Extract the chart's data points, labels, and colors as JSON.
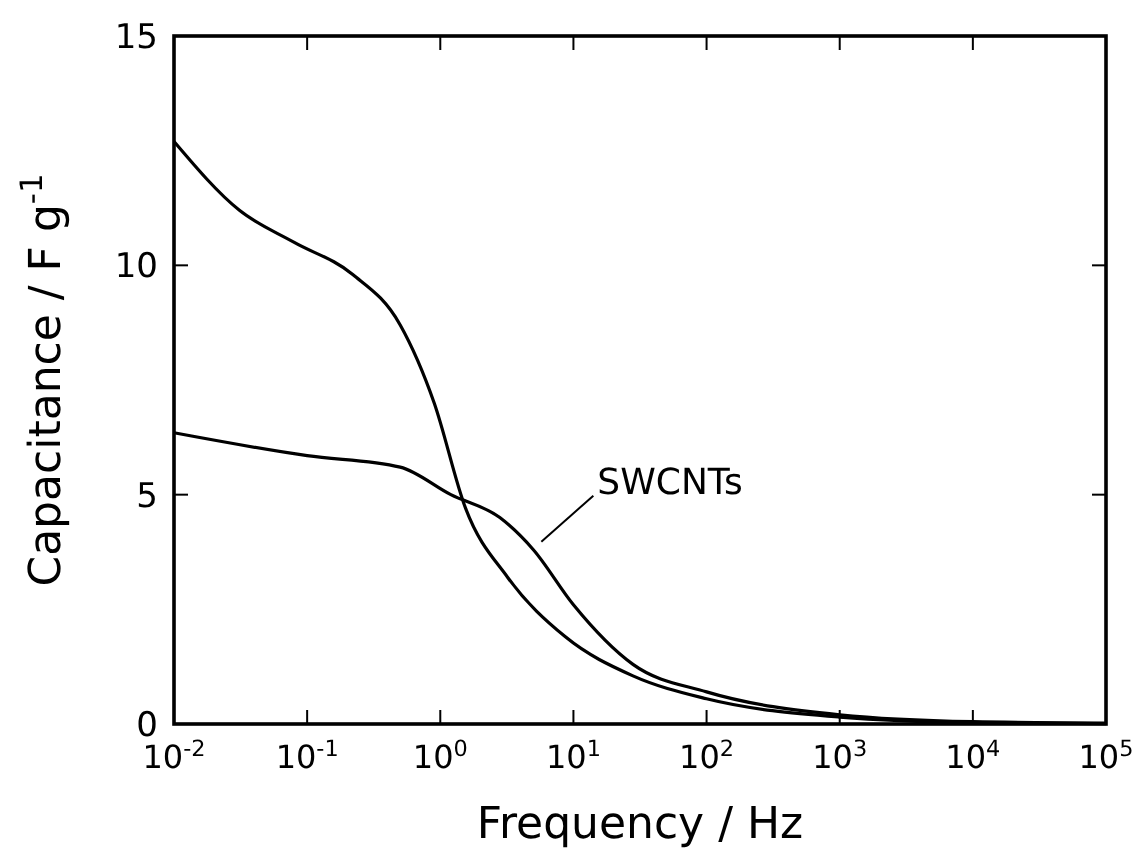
{
  "chart_data": {
    "type": "line",
    "xlabel": "Frequency / Hz",
    "ylabel": "Capacitance / F g$^{-1}$",
    "log": "x",
    "xlim": [
      0.01,
      100000
    ],
    "ylim": [
      0,
      15
    ],
    "xticks": [
      {
        "value": 0.01,
        "label": "10$^{-2}$"
      },
      {
        "value": 0.1,
        "label": "10$^{-1}$"
      },
      {
        "value": 1,
        "label": "10$^{0}$"
      },
      {
        "value": 10,
        "label": "10$^{1}$"
      },
      {
        "value": 100,
        "label": "10$^{2}$"
      },
      {
        "value": 1000,
        "label": "10$^{3}$"
      },
      {
        "value": 10000,
        "label": "10$^{4}$"
      },
      {
        "value": 100000,
        "label": "10$^{5}$"
      }
    ],
    "yticks": [
      0,
      5,
      10,
      15
    ],
    "grid": false,
    "line_style": "solid",
    "marker": "none",
    "series": [
      {
        "color": "#000000",
        "x": [
          0.01,
          0.031,
          0.08,
          0.22,
          0.5,
          0.9,
          1.55,
          3.2,
          8.7,
          28,
          100,
          1000,
          10000,
          100000
        ],
        "values": [
          12.7,
          11.2,
          10.5,
          9.8,
          8.7,
          7.0,
          4.7,
          3.2,
          1.9,
          1.05,
          0.55,
          0.15,
          0.03,
          0.01
        ]
      },
      {
        "name": "SWCNTs",
        "color": "#000000",
        "x": [
          0.01,
          0.1,
          0.5,
          1.2,
          2.8,
          5,
          10,
          28,
          100,
          1000,
          10000,
          100000
        ],
        "values": [
          6.35,
          5.85,
          5.6,
          5.0,
          4.5,
          3.8,
          2.6,
          1.3,
          0.7,
          0.2,
          0.05,
          0.02
        ]
      }
    ]
  }
}
